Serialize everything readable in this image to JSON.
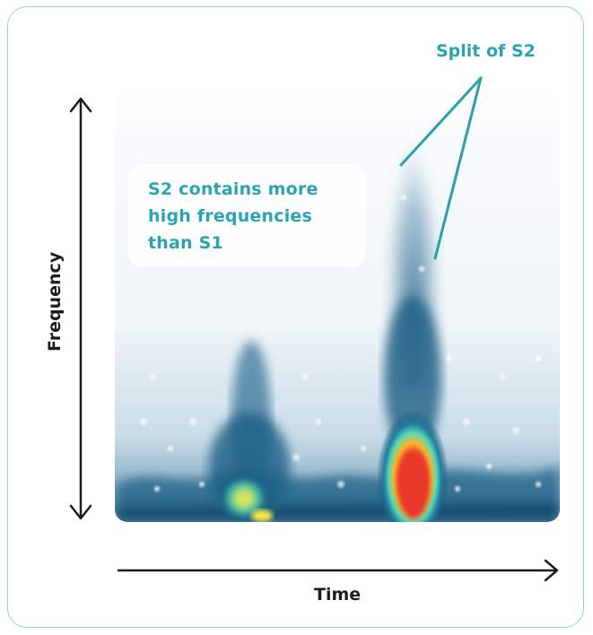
{
  "figure": {
    "x_axis_label": "Time",
    "y_axis_label": "Frequency",
    "callout": {
      "lines": [
        "S2 contains more",
        "high frequencies",
        "than S1"
      ]
    },
    "split_label": "Split of S2",
    "colors": {
      "accent": "#2aa3b3",
      "axis": "#1d1d1d",
      "border": "#9ccfd8",
      "heat_low": "#e6f0f5",
      "heat_mid": "#1d5f85",
      "heat_high": "#e8392c"
    },
    "regions": [
      {
        "name": "S1",
        "description_visible": false
      },
      {
        "name": "S2",
        "description_visible": false
      }
    ]
  }
}
